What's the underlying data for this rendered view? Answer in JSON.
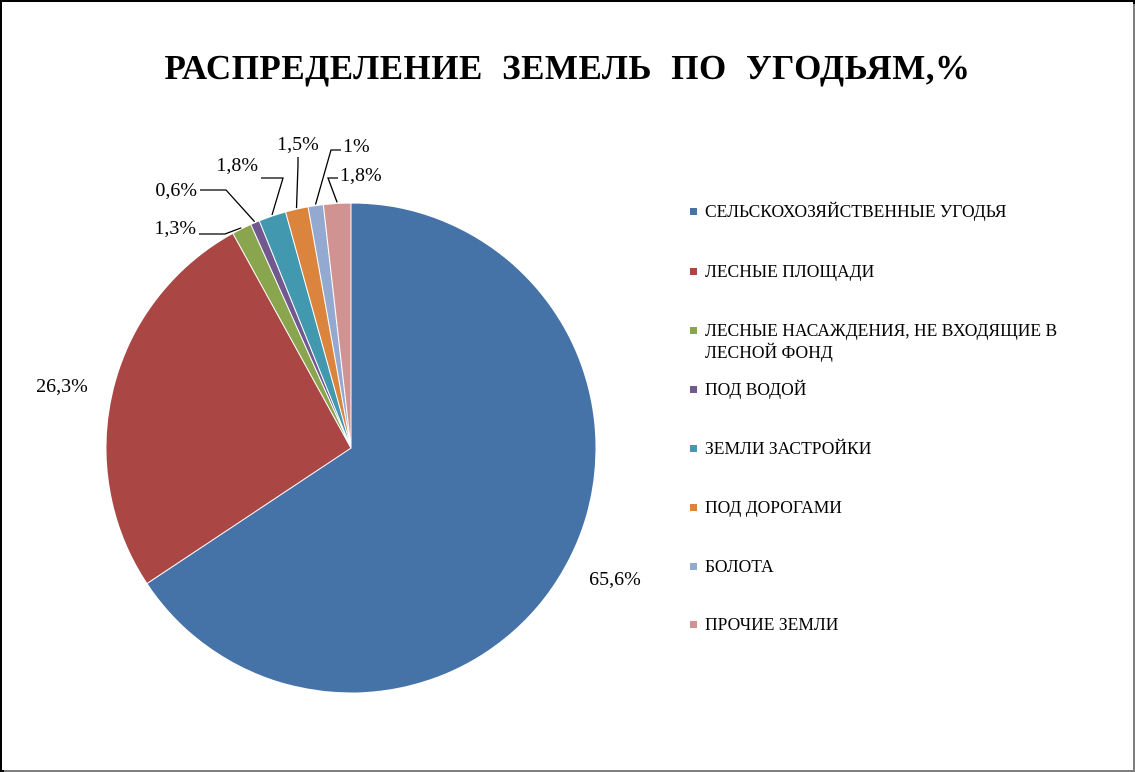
{
  "chart_data": {
    "type": "pie",
    "title": "РАСПРЕДЕЛЕНИЕ  ЗЕМЕЛЬ  ПО  УГОДЬЯМ,%",
    "legend_position": "right",
    "slices": [
      {
        "name": "СЕЛЬСКОХОЗЯЙСТВЕННЫЕ УГОДЬЯ",
        "value": 65.6,
        "label": "65,6%",
        "color": "#4572A7"
      },
      {
        "name": "ЛЕСНЫЕ ПЛОЩАДИ",
        "value": 26.3,
        "label": "26,3%",
        "color": "#AA4643"
      },
      {
        "name": "ЛЕСНЫЕ НАСАЖДЕНИЯ, НЕ ВХОДЯЩИЕ В ЛЕСНОЙ ФОНД",
        "value": 1.3,
        "label": "1,3%",
        "color": "#89A54E"
      },
      {
        "name": "ПОД ВОДОЙ",
        "value": 0.6,
        "label": "0,6%",
        "color": "#71588F"
      },
      {
        "name": "ЗЕМЛИ ЗАСТРОЙКИ",
        "value": 1.8,
        "label": "1,8%",
        "color": "#4198AF"
      },
      {
        "name": "ПОД ДОРОГАМИ",
        "value": 1.5,
        "label": "1,5%",
        "color": "#DB843D"
      },
      {
        "name": "БОЛОТА",
        "value": 1.0,
        "label": "1%",
        "color": "#93A9CF"
      },
      {
        "name": "ПРОЧИЕ ЗЕМЛИ",
        "value": 1.8,
        "label": "1,8%",
        "color": "#D19392"
      }
    ]
  }
}
